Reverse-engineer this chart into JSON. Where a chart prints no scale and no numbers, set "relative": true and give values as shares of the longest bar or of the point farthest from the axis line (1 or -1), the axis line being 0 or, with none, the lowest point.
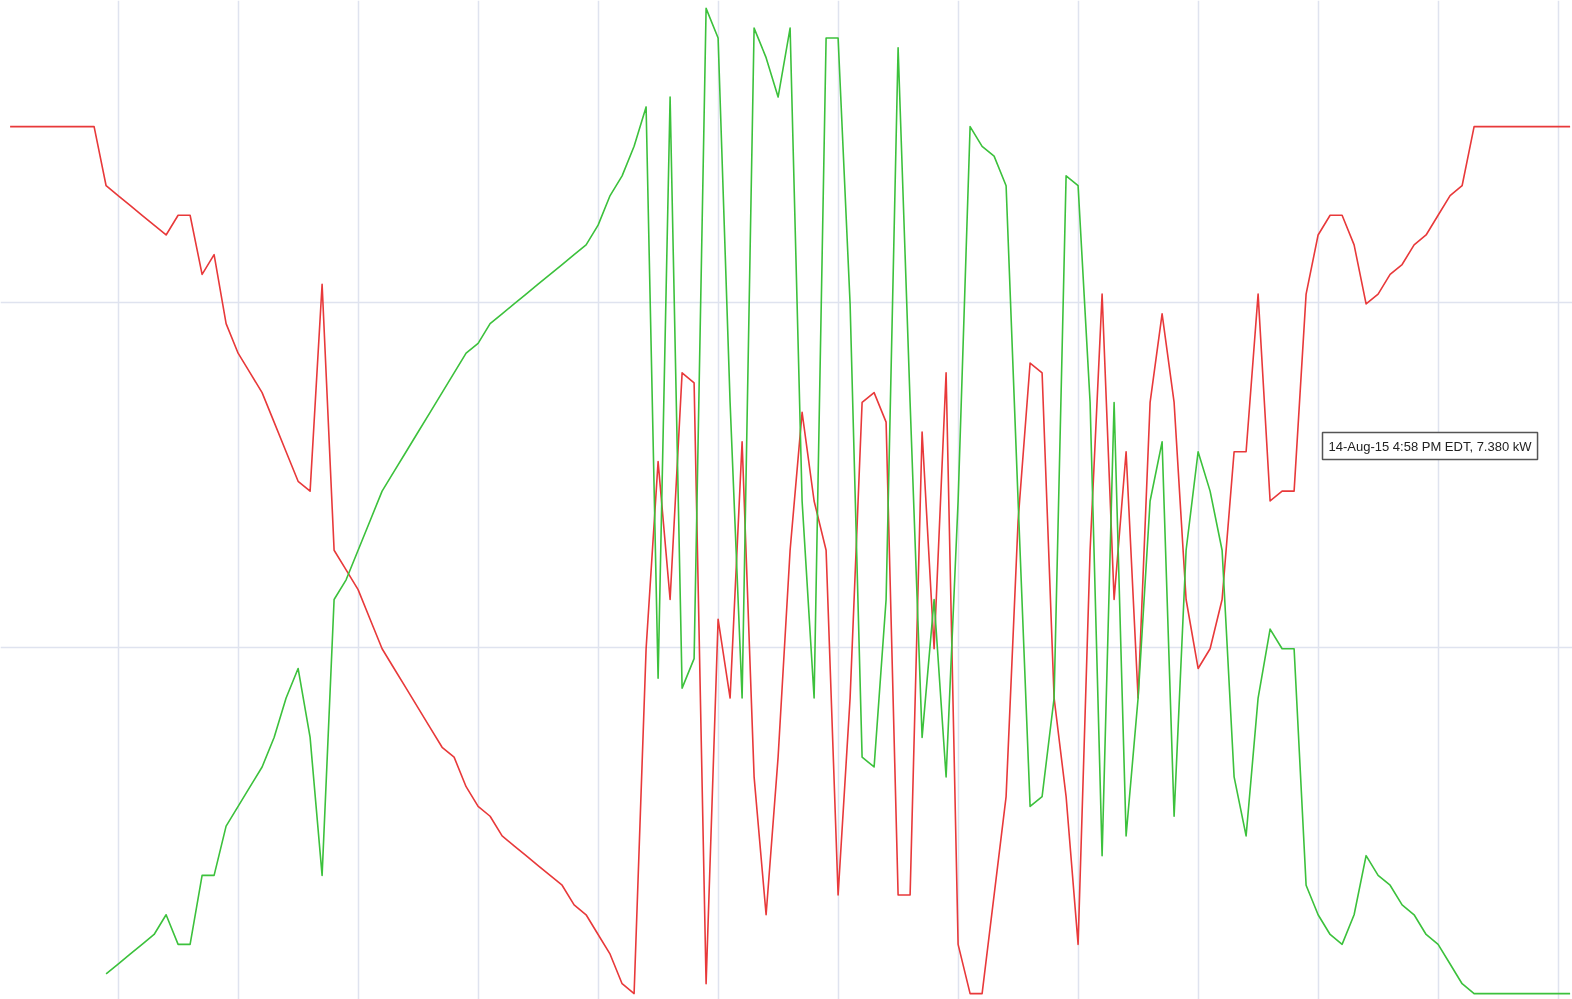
{
  "chart_data": {
    "type": "line",
    "relative": true,
    "grid": true,
    "marker": "none",
    "line_style": "solid",
    "categories": [
      null,
      null,
      null,
      null,
      null,
      null,
      null,
      null,
      null,
      null,
      null,
      null,
      null,
      null,
      null,
      null,
      null,
      null,
      null,
      null,
      null,
      null,
      null,
      null,
      null,
      null,
      null,
      null,
      null,
      null,
      null,
      null,
      null,
      null,
      null,
      null,
      null,
      null,
      null,
      null,
      null,
      null,
      null,
      null,
      null,
      null,
      null,
      null,
      null,
      null,
      null,
      null,
      null,
      null,
      null,
      null,
      null,
      null,
      null,
      null,
      null,
      null,
      null,
      null,
      null,
      null,
      null,
      null,
      null,
      null,
      null,
      null,
      null,
      null,
      null,
      null,
      null,
      null,
      null,
      null,
      null,
      null,
      null,
      null,
      null,
      null,
      null,
      null,
      null,
      null,
      null,
      null,
      null,
      null,
      null,
      null,
      null,
      null,
      null,
      null,
      null,
      null,
      null,
      null,
      null,
      null,
      null,
      null,
      null,
      null,
      null,
      null,
      null,
      null,
      null,
      null,
      null,
      null,
      null,
      null,
      null,
      null,
      null,
      null,
      null,
      null,
      null,
      null,
      null,
      null,
      null
    ],
    "series": [
      {
        "color": "#e8393a",
        "values": [
          0.88,
          0.88,
          0.88,
          0.88,
          0.88,
          0.88,
          0.88,
          0.88,
          0.82,
          0.81,
          0.8,
          0.79,
          0.78,
          0.77,
          0.79,
          0.79,
          0.73,
          0.75,
          0.68,
          0.65,
          0.63,
          0.61,
          0.58,
          0.55,
          0.52,
          0.51,
          0.72,
          0.45,
          0.43,
          0.41,
          0.38,
          0.35,
          0.33,
          0.31,
          0.29,
          0.27,
          0.25,
          0.24,
          0.21,
          0.19,
          0.18,
          0.16,
          0.15,
          0.14,
          0.13,
          0.12,
          0.11,
          0.09,
          0.08,
          0.06,
          0.04,
          0.01,
          0.0,
          0.35,
          0.54,
          0.4,
          0.63,
          0.62,
          0.01,
          0.38,
          0.3,
          0.56,
          0.22,
          0.08,
          0.24,
          0.45,
          0.59,
          0.5,
          0.45,
          0.1,
          0.3,
          0.6,
          0.61,
          0.58,
          0.1,
          0.1,
          0.57,
          0.35,
          0.63,
          0.05,
          0.0,
          0.0,
          0.1,
          0.2,
          0.48,
          0.64,
          0.63,
          0.3,
          0.2,
          0.05,
          0.45,
          0.71,
          0.4,
          0.55,
          0.3,
          0.6,
          0.69,
          0.6,
          0.4,
          0.33,
          0.35,
          0.4,
          0.55,
          0.55,
          0.71,
          0.5,
          0.51,
          0.51,
          0.71,
          0.77,
          0.79,
          0.79,
          0.76,
          0.7,
          0.71,
          0.73,
          0.74,
          0.76,
          0.77,
          0.79,
          0.81,
          0.82,
          0.88,
          0.88,
          0.88,
          0.88,
          0.88,
          0.88,
          0.88,
          0.88,
          0.88
        ]
      },
      {
        "color": "#3cc13c",
        "values": [
          null,
          null,
          null,
          null,
          null,
          null,
          null,
          null,
          0.02,
          0.03,
          0.04,
          0.05,
          0.06,
          0.08,
          0.05,
          0.05,
          0.12,
          0.12,
          0.17,
          0.19,
          0.21,
          0.23,
          0.26,
          0.3,
          0.33,
          0.26,
          0.12,
          0.4,
          0.42,
          0.45,
          0.48,
          0.51,
          0.53,
          0.55,
          0.57,
          0.59,
          0.61,
          0.63,
          0.65,
          0.66,
          0.68,
          0.69,
          0.7,
          0.71,
          0.72,
          0.73,
          0.74,
          0.75,
          0.76,
          0.78,
          0.81,
          0.83,
          0.86,
          0.9,
          0.32,
          0.91,
          0.31,
          0.34,
          1.0,
          0.97,
          0.6,
          0.3,
          0.98,
          0.95,
          0.91,
          0.98,
          0.5,
          0.3,
          0.97,
          0.97,
          0.7,
          0.24,
          0.23,
          0.4,
          0.96,
          0.6,
          0.26,
          0.4,
          0.22,
          0.5,
          0.88,
          0.86,
          0.85,
          0.82,
          0.5,
          0.19,
          0.2,
          0.3,
          0.83,
          0.82,
          0.6,
          0.14,
          0.6,
          0.16,
          0.3,
          0.5,
          0.56,
          0.18,
          0.45,
          0.55,
          0.51,
          0.45,
          0.22,
          0.16,
          0.3,
          0.37,
          0.35,
          0.35,
          0.11,
          0.08,
          0.06,
          0.05,
          0.08,
          0.14,
          0.12,
          0.11,
          0.09,
          0.08,
          0.06,
          0.05,
          0.03,
          0.01,
          0.0,
          0.0,
          0.0,
          0.0,
          0.0,
          0.0,
          0.0,
          0.0,
          0.0
        ]
      }
    ],
    "annotations": [
      "14-Aug-15 4:58 PM EDT, 7.380 kW"
    ]
  }
}
